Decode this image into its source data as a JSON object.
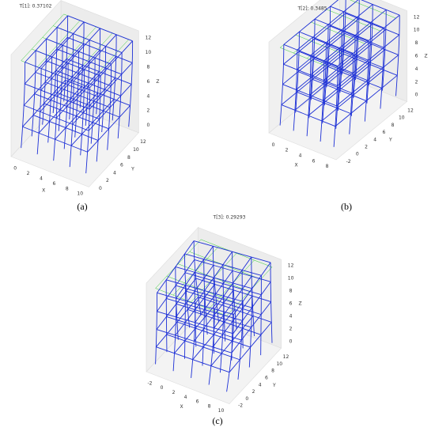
{
  "panels": [
    {
      "title": "T[1]: 0.37102",
      "caption": "(a)",
      "x_label": "X",
      "y_label": "Y",
      "z_label": "Z",
      "xticks": [
        0,
        2,
        4,
        6,
        8,
        10
      ],
      "yticks": [
        0,
        2,
        4,
        6,
        8,
        10,
        12
      ],
      "zticks": [
        0,
        2,
        4,
        6,
        8,
        10,
        12
      ]
    },
    {
      "title": "T[2]: 0.3485",
      "caption": "(b)",
      "x_label": "X",
      "y_label": "Y",
      "z_label": "Z",
      "xticks": [
        0,
        2,
        4,
        6,
        8
      ],
      "yticks": [
        -2,
        0,
        2,
        4,
        6,
        8,
        10,
        12
      ],
      "zticks": [
        0,
        2,
        4,
        6,
        8,
        10,
        12
      ]
    },
    {
      "title": "T[3]: 0.29293",
      "caption": "(c)",
      "x_label": "X",
      "y_label": "Y",
      "z_label": "Z",
      "xticks": [
        -2,
        0,
        2,
        4,
        6,
        8,
        10
      ],
      "yticks": [
        -2,
        0,
        2,
        4,
        6,
        8,
        10,
        12
      ],
      "zticks": [
        0,
        2,
        4,
        6,
        8,
        10,
        12
      ]
    }
  ]
}
